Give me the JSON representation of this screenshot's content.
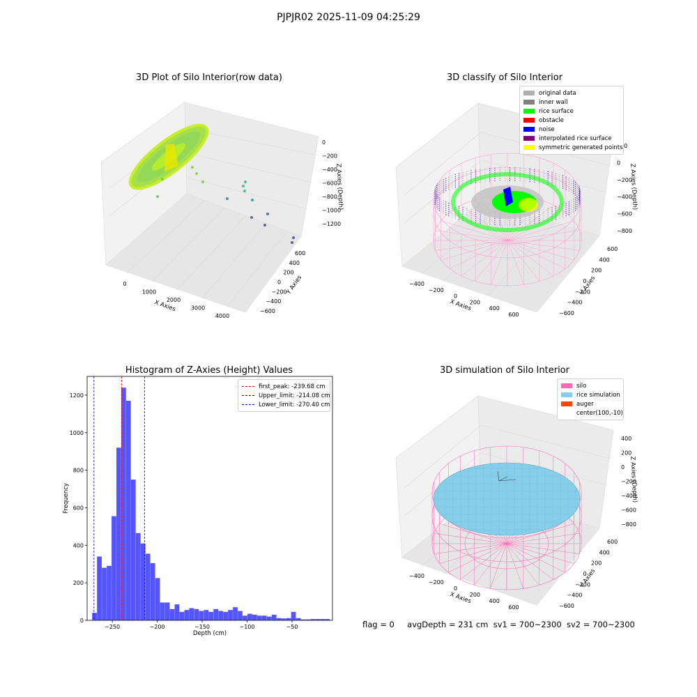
{
  "suptitle": "PJPJR02 2025-11-09 04:25:29",
  "footer": {
    "flag": "flag = 0",
    "avg": "avgDepth = 231 cm",
    "sv1": "sv1 = 700~2300",
    "sv2": "sv2 = 700~2300"
  },
  "colors": {
    "hist": "#4c4cff",
    "peak": "#ff0000",
    "limit": "#0000ff",
    "silo": "#ff69b4",
    "rice": "#87ceeb",
    "auger": "#ff4500"
  },
  "panels": {
    "raw": {
      "title": "3D Plot of Silo Interior(row data)",
      "xlabel": "X Axies",
      "ylabel": "Y Axies",
      "zlabel": "Z Axies (Depth)",
      "xticks": [
        "0",
        "1000",
        "2000",
        "3000",
        "4000"
      ],
      "yticks": [
        "600",
        "400",
        "200",
        "0",
        "−200",
        "−400",
        "−600"
      ],
      "zticks": [
        "0",
        "−200",
        "−400",
        "−600",
        "−800",
        "−1000",
        "−1200"
      ]
    },
    "classify": {
      "title": "3D classify of Silo Interior",
      "xlabel": "X Axies",
      "ylabel": "Y Axies",
      "zlabel": "Z Axies (Depth)",
      "xticks": [
        "−400",
        "−200",
        "0",
        "200",
        "400",
        "600"
      ],
      "yticks": [
        "600",
        "400",
        "200",
        "0",
        "−200",
        "−400",
        "−600"
      ],
      "zticks": [
        "200",
        "0",
        "−200",
        "−400",
        "−600",
        "−800"
      ],
      "legend": [
        {
          "label": "original data",
          "color": "#b0b0b0"
        },
        {
          "label": "inner wall",
          "color": "#808080"
        },
        {
          "label": "rice surface",
          "color": "#00ff00"
        },
        {
          "label": "obstacle",
          "color": "#ff0000"
        },
        {
          "label": "noise",
          "color": "#0000ff"
        },
        {
          "label": "interpolated rice surface",
          "color": "#800080"
        },
        {
          "label": "symmetric generated points",
          "color": "#ffff00"
        }
      ]
    },
    "simulation": {
      "title": "3D simulation of Silo Interior",
      "xlabel": "X Axies",
      "ylabel": "Y Axies",
      "zlabel": "Z Axies (Depth)",
      "xticks": [
        "−400",
        "−200",
        "0",
        "200",
        "400",
        "600"
      ],
      "yticks": [
        "600",
        "400",
        "200",
        "0",
        "−200",
        "−400",
        "−600"
      ],
      "zticks": [
        "400",
        "200",
        "0",
        "−200",
        "−400",
        "−600",
        "−800"
      ],
      "legend": [
        {
          "label": "silo",
          "color": "#ff69b4"
        },
        {
          "label": "rice simulation",
          "color": "#87ceeb"
        },
        {
          "label": "auger",
          "color": "#ff4500"
        },
        {
          "label": "center(100,-10)",
          "color": ""
        }
      ]
    }
  },
  "chart_data": {
    "type": "bar",
    "title": "Histogram of Z-Axies (Height) Values",
    "xlabel": "Depth (cm)",
    "ylabel": "Frequency",
    "xlim": [
      -278,
      -5
    ],
    "ylim": [
      0,
      1300
    ],
    "xticks": [
      -250,
      -200,
      -150,
      -100,
      -50
    ],
    "yticks": [
      0,
      200,
      400,
      600,
      800,
      1000,
      1200
    ],
    "bin_width": 5.4,
    "bins_start": -272.4,
    "values": [
      40,
      340,
      280,
      290,
      555,
      920,
      1240,
      1170,
      750,
      465,
      410,
      355,
      305,
      225,
      95,
      95,
      60,
      85,
      45,
      55,
      65,
      60,
      50,
      55,
      45,
      60,
      50,
      45,
      55,
      70,
      50,
      25,
      35,
      30,
      25,
      25,
      20,
      30,
      12,
      10,
      12,
      45,
      12,
      5,
      5,
      7,
      7,
      7,
      7
    ],
    "vlines": [
      {
        "label": "first_peak: -239.68 cm",
        "x": -239.68,
        "color": "#ff0000"
      },
      {
        "label": "Upper_limit: -214.08 cm",
        "x": -214.08,
        "color": "#0000ff"
      },
      {
        "label": "Lower_limit: -270.40 cm",
        "x": -270.4,
        "color": "#0000ff"
      }
    ],
    "legend_position": "upper right"
  }
}
